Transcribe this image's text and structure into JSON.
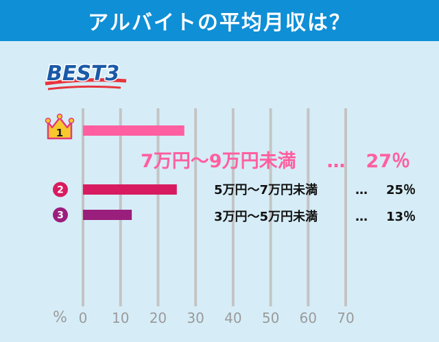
{
  "header": {
    "title": "アルバイトの平均月収は？"
  },
  "badge": {
    "text": "BEST3"
  },
  "colors": {
    "rank1": "#ff5fa0",
    "rank2": "#d81b60",
    "rank3": "#9a1e7c",
    "header": "#0f8fd6",
    "background": "#d6edf7"
  },
  "chart_data": {
    "type": "bar",
    "orientation": "horizontal",
    "title": "",
    "xlabel": "%",
    "ylabel": "",
    "xlim": [
      0,
      70
    ],
    "x_ticks": [
      "0",
      "10",
      "20",
      "30",
      "40",
      "50",
      "60",
      "70"
    ],
    "grid": true,
    "categories": [
      "7万円〜9万円未満",
      "5万円〜7万円未満",
      "3万円〜5万円未満"
    ],
    "ranks": [
      "1",
      "2",
      "3"
    ],
    "values": [
      27,
      25,
      13
    ],
    "value_labels": [
      "27％",
      "25％",
      "13％"
    ],
    "separator": "…"
  }
}
